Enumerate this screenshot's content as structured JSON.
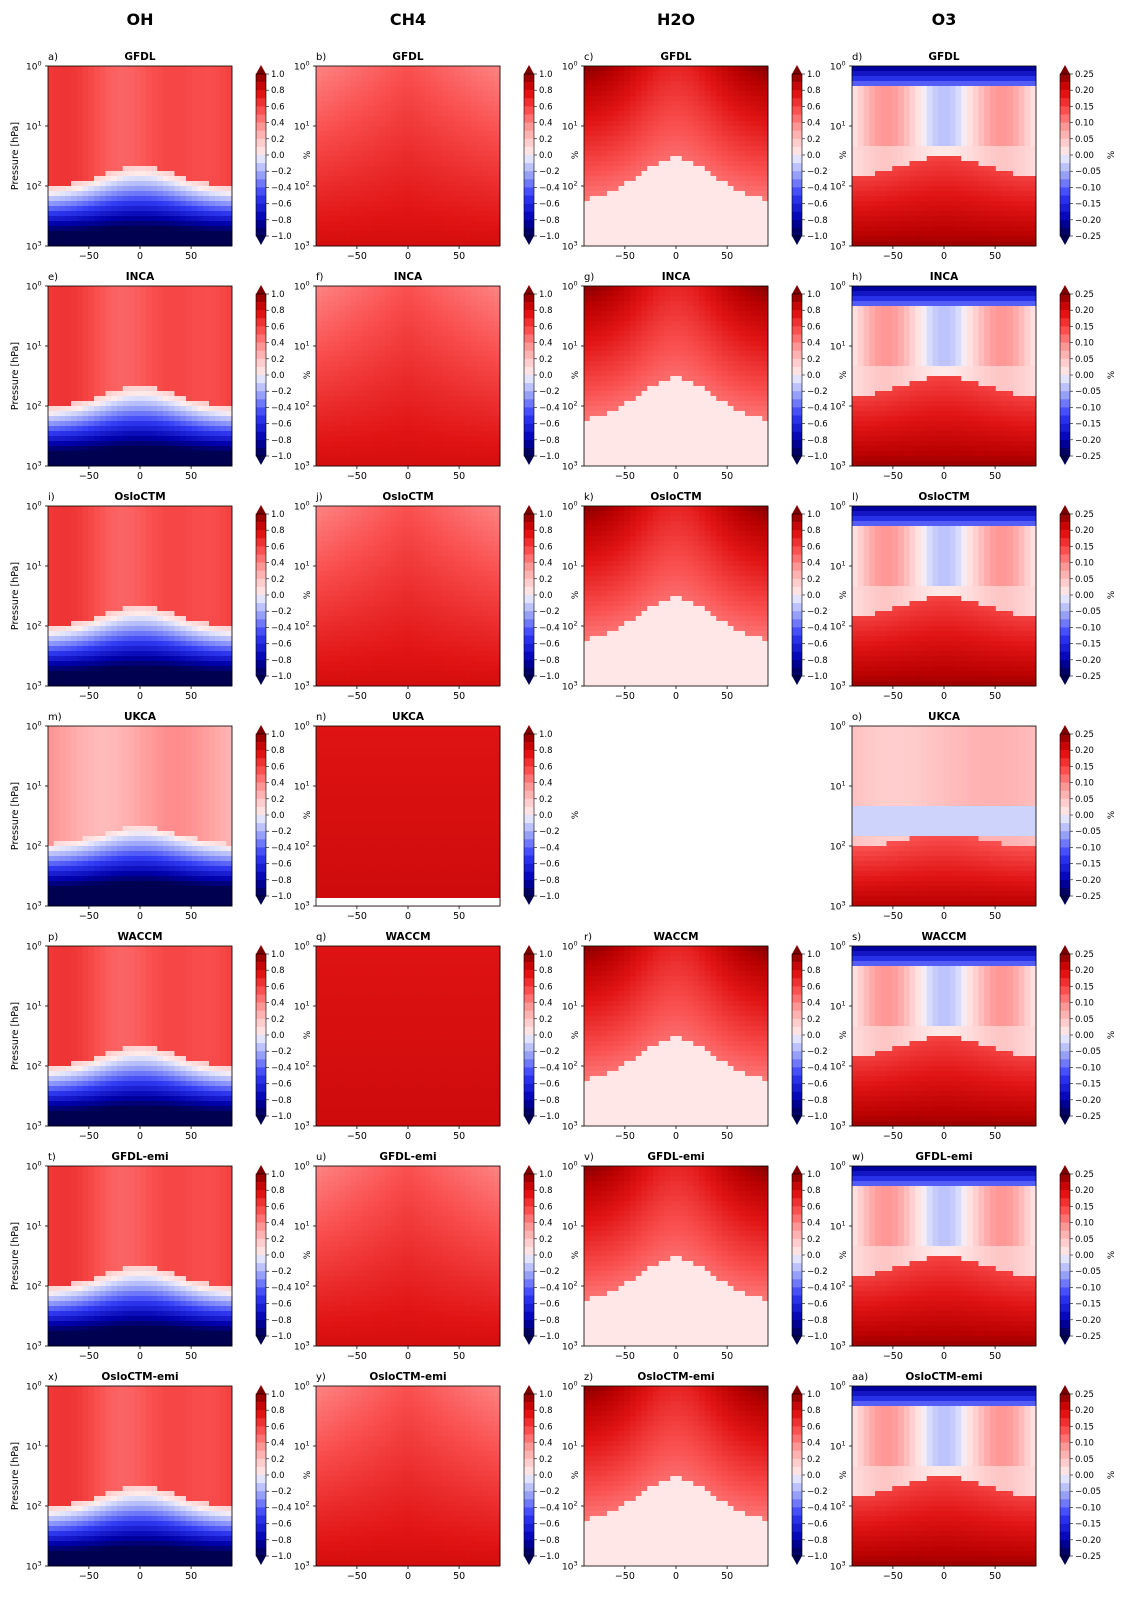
{
  "figure": {
    "column_titles": [
      "OH",
      "CH4",
      "H2O",
      "O3"
    ],
    "ylabel": "Pressure [hPa]",
    "colorbar_label": "%",
    "y_ticks": [
      "10",
      "10",
      "10",
      "10"
    ],
    "y_tick_exponents": [
      "0",
      "1",
      "2",
      "3"
    ],
    "x_ticks": [
      "−50",
      "0",
      "50"
    ]
  },
  "colorbars": {
    "OH": {
      "ticks": [
        "1.0",
        "0.8",
        "0.6",
        "0.4",
        "0.2",
        "0.0",
        "−0.2",
        "−0.4",
        "−0.6",
        "−0.8",
        "−1.0"
      ],
      "range": [
        -1.0,
        1.0
      ]
    },
    "CH4": {
      "ticks": [
        "1.0",
        "0.8",
        "0.6",
        "0.4",
        "0.2",
        "0.0",
        "−0.2",
        "−0.4",
        "−0.6",
        "−0.8",
        "−1.0"
      ],
      "range": [
        -1.0,
        1.0
      ]
    },
    "H2O": {
      "ticks": [
        "1.0",
        "0.8",
        "0.6",
        "0.4",
        "0.2",
        "0.0",
        "−0.2",
        "−0.4",
        "−0.6",
        "−0.8",
        "−1.0"
      ],
      "range": [
        -1.0,
        1.0
      ]
    },
    "O3": {
      "ticks": [
        "0.25",
        "0.20",
        "0.15",
        "0.10",
        "0.05",
        "0.00",
        "−0.05",
        "−0.10",
        "−0.15",
        "−0.20",
        "−0.25"
      ],
      "range": [
        -0.25,
        0.25
      ]
    }
  },
  "chart_data": [
    {
      "type": "heatmap",
      "letter": "a)",
      "title": "GFDL",
      "variable": "OH",
      "row": 0,
      "col": 0,
      "pattern": "oh"
    },
    {
      "type": "heatmap",
      "letter": "b)",
      "title": "GFDL",
      "variable": "CH4",
      "row": 0,
      "col": 1,
      "pattern": "ch4"
    },
    {
      "type": "heatmap",
      "letter": "c)",
      "title": "GFDL",
      "variable": "H2O",
      "row": 0,
      "col": 2,
      "pattern": "h2o"
    },
    {
      "type": "heatmap",
      "letter": "d)",
      "title": "GFDL",
      "variable": "O3",
      "row": 0,
      "col": 3,
      "pattern": "o3"
    },
    {
      "type": "heatmap",
      "letter": "e)",
      "title": "INCA",
      "variable": "OH",
      "row": 1,
      "col": 0,
      "pattern": "oh"
    },
    {
      "type": "heatmap",
      "letter": "f)",
      "title": "INCA",
      "variable": "CH4",
      "row": 1,
      "col": 1,
      "pattern": "ch4"
    },
    {
      "type": "heatmap",
      "letter": "g)",
      "title": "INCA",
      "variable": "H2O",
      "row": 1,
      "col": 2,
      "pattern": "h2o"
    },
    {
      "type": "heatmap",
      "letter": "h)",
      "title": "INCA",
      "variable": "O3",
      "row": 1,
      "col": 3,
      "pattern": "o3"
    },
    {
      "type": "heatmap",
      "letter": "i)",
      "title": "OsloCTM",
      "variable": "OH",
      "row": 2,
      "col": 0,
      "pattern": "oh"
    },
    {
      "type": "heatmap",
      "letter": "j)",
      "title": "OsloCTM",
      "variable": "CH4",
      "row": 2,
      "col": 1,
      "pattern": "ch4"
    },
    {
      "type": "heatmap",
      "letter": "k)",
      "title": "OsloCTM",
      "variable": "H2O",
      "row": 2,
      "col": 2,
      "pattern": "h2o"
    },
    {
      "type": "heatmap",
      "letter": "l)",
      "title": "OsloCTM",
      "variable": "O3",
      "row": 2,
      "col": 3,
      "pattern": "o3"
    },
    {
      "type": "heatmap",
      "letter": "m)",
      "title": "UKCA",
      "variable": "OH",
      "row": 3,
      "col": 0,
      "pattern": "oh_ukca"
    },
    {
      "type": "heatmap",
      "letter": "n)",
      "title": "UKCA",
      "variable": "CH4",
      "row": 3,
      "col": 1,
      "pattern": "ch4_dark"
    },
    {
      "type": "heatmap",
      "letter": "o)",
      "title": "UKCA",
      "variable": "O3",
      "row": 3,
      "col": 3,
      "pattern": "o3_ukca"
    },
    {
      "type": "heatmap",
      "letter": "p)",
      "title": "WACCM",
      "variable": "OH",
      "row": 4,
      "col": 0,
      "pattern": "oh"
    },
    {
      "type": "heatmap",
      "letter": "q)",
      "title": "WACCM",
      "variable": "CH4",
      "row": 4,
      "col": 1,
      "pattern": "ch4_dark"
    },
    {
      "type": "heatmap",
      "letter": "r)",
      "title": "WACCM",
      "variable": "H2O",
      "row": 4,
      "col": 2,
      "pattern": "h2o"
    },
    {
      "type": "heatmap",
      "letter": "s)",
      "title": "WACCM",
      "variable": "O3",
      "row": 4,
      "col": 3,
      "pattern": "o3"
    },
    {
      "type": "heatmap",
      "letter": "t)",
      "title": "GFDL-emi",
      "variable": "OH",
      "row": 5,
      "col": 0,
      "pattern": "oh"
    },
    {
      "type": "heatmap",
      "letter": "u)",
      "title": "GFDL-emi",
      "variable": "CH4",
      "row": 5,
      "col": 1,
      "pattern": "ch4"
    },
    {
      "type": "heatmap",
      "letter": "v)",
      "title": "GFDL-emi",
      "variable": "H2O",
      "row": 5,
      "col": 2,
      "pattern": "h2o"
    },
    {
      "type": "heatmap",
      "letter": "w)",
      "title": "GFDL-emi",
      "variable": "O3",
      "row": 5,
      "col": 3,
      "pattern": "o3"
    },
    {
      "type": "heatmap",
      "letter": "x)",
      "title": "OsloCTM-emi",
      "variable": "OH",
      "row": 6,
      "col": 0,
      "pattern": "oh"
    },
    {
      "type": "heatmap",
      "letter": "y)",
      "title": "OsloCTM-emi",
      "variable": "CH4",
      "row": 6,
      "col": 1,
      "pattern": "ch4"
    },
    {
      "type": "heatmap",
      "letter": "z)",
      "title": "OsloCTM-emi",
      "variable": "H2O",
      "row": 6,
      "col": 2,
      "pattern": "h2o"
    },
    {
      "type": "heatmap",
      "letter": "aa)",
      "title": "OsloCTM-emi",
      "variable": "O3",
      "row": 6,
      "col": 3,
      "pattern": "o3"
    }
  ]
}
